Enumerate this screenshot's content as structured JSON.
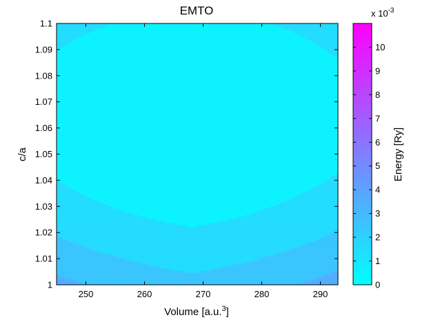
{
  "chart_data": {
    "type": "contour",
    "title": "EMTO",
    "xlabel": "Volume [a.u.",
    "xlabel_sup": "3",
    "xlabel_end": "]",
    "ylabel": "c/a",
    "colorbar_label": "Energy [Ry]",
    "colorbar_multiplier": "x 10",
    "colorbar_multiplier_exp": "-3",
    "xlim": [
      245,
      293
    ],
    "ylim": [
      1.0,
      1.1
    ],
    "clim": [
      0,
      11
    ],
    "x_ticks": [
      "250",
      "260",
      "270",
      "280",
      "290"
    ],
    "x_tick_values": [
      250,
      260,
      270,
      280,
      290
    ],
    "y_ticks": [
      "1",
      "1.01",
      "1.02",
      "1.03",
      "1.04",
      "1.05",
      "1.06",
      "1.07",
      "1.08",
      "1.09",
      "1.1"
    ],
    "y_tick_values": [
      1.0,
      1.01,
      1.02,
      1.03,
      1.04,
      1.05,
      1.06,
      1.07,
      1.08,
      1.09,
      1.1
    ],
    "colorbar_ticks": [
      "0",
      "1",
      "2",
      "3",
      "4",
      "5",
      "6",
      "7",
      "8",
      "9",
      "10"
    ],
    "colorbar_tick_values": [
      0,
      1,
      2,
      3,
      4,
      5,
      6,
      7,
      8,
      9,
      10
    ],
    "minimum": {
      "volume": 268,
      "c_over_a": 1.065
    },
    "colormap": [
      "#00ffff",
      "#ff00ff"
    ]
  }
}
